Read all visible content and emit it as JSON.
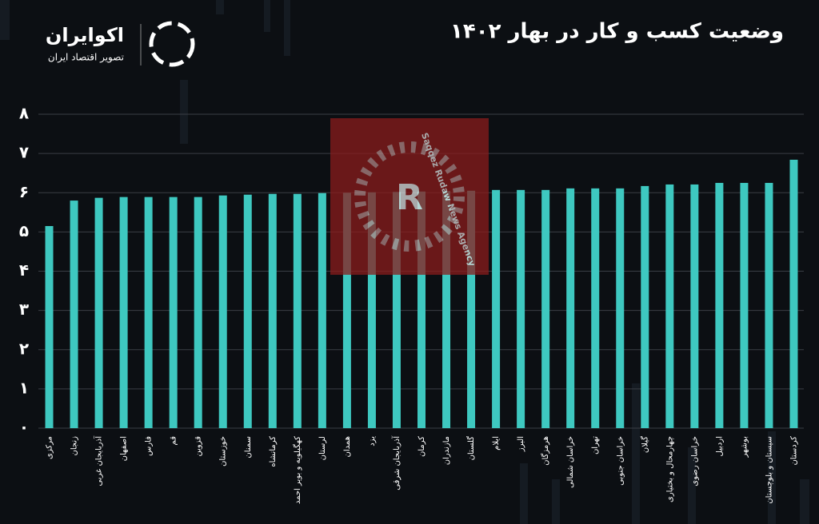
{
  "logo": {
    "name": "اکوایران",
    "tagline": "تصویر اقتصاد ایران"
  },
  "watermark": "Saqqez Rudaw News Agency",
  "chart_data": {
    "type": "bar",
    "title": "وضعیت کسب و کار در بهار ۱۴۰۲",
    "categories": [
      "مرکزی",
      "زنجان",
      "آذربایجان غربی",
      "اصفهان",
      "فارس",
      "قم",
      "قزوین",
      "خوزستان",
      "سمنان",
      "کرمانشاه",
      "کهگیلویه و بویر احمد",
      "لرستان",
      "همدان",
      "یزد",
      "آذربایجان شرقی",
      "کرمان",
      "مازندران",
      "گلستان",
      "ایلام",
      "البرز",
      "هرمزگان",
      "خراسان شمالی",
      "تهران",
      "خراسان جنوبی",
      "گیلان",
      "چهارمحال و بختیاری",
      "خراسان رضوی",
      "اردبیل",
      "بوشهر",
      "سیستان و بلوچستان",
      "کردستان"
    ],
    "values": [
      5.15,
      5.8,
      5.87,
      5.89,
      5.89,
      5.89,
      5.89,
      5.93,
      5.95,
      5.97,
      5.97,
      5.99,
      6.0,
      6.01,
      6.02,
      6.03,
      6.04,
      6.05,
      6.07,
      6.07,
      6.07,
      6.11,
      6.11,
      6.11,
      6.17,
      6.21,
      6.21,
      6.25,
      6.25,
      6.25,
      6.84
    ],
    "color": "#3ec8c0",
    "ylim": [
      0,
      8
    ],
    "yticks": [
      {
        "value": 0,
        "label": "۰"
      },
      {
        "value": 1,
        "label": "۱"
      },
      {
        "value": 2,
        "label": "۲"
      },
      {
        "value": 3,
        "label": "۳"
      },
      {
        "value": 4,
        "label": "۴"
      },
      {
        "value": 5,
        "label": "۵"
      },
      {
        "value": 6,
        "label": "۶"
      },
      {
        "value": 7,
        "label": "۷"
      },
      {
        "value": 8,
        "label": "۸"
      }
    ],
    "grid": true
  }
}
